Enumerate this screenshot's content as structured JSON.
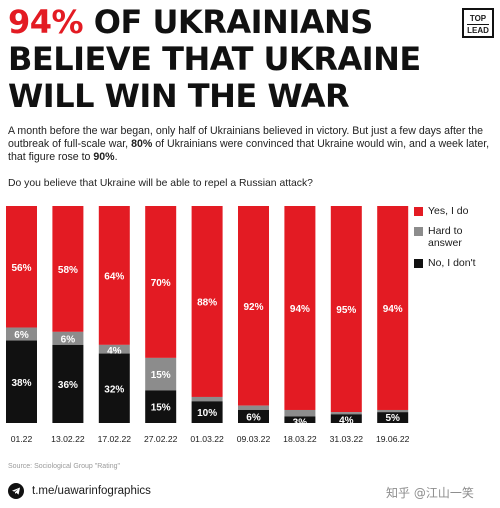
{
  "headline": {
    "line1_red": "94%",
    "line1_rest": " OF UKRAINIANS",
    "line2": "BELIEVE THAT UKRAINE",
    "line3": "WILL WIN THE WAR"
  },
  "badge": {
    "line1": "TOP",
    "line2": "LEAD"
  },
  "intro": {
    "part1": "A month before the war began, only half of Ukrainians believed in victory. But just a few days after the outbreak of full-scale war, ",
    "bold1": "80%",
    "part2": " of Ukrainians were convinced that Ukraine would win, and a week later, that figure rose to ",
    "bold2": "90%",
    "part3": "."
  },
  "question": "Do you believe that Ukraine will be able to repel a Russian attack?",
  "colors": {
    "yes": "#e31b23",
    "hard": "#8c8c8c",
    "no": "#111111"
  },
  "chart_data": {
    "type": "bar",
    "stacked": true,
    "categories": [
      "01.22",
      "13.02.22",
      "17.02.22",
      "27.02.22",
      "01.03.22",
      "09.03.22",
      "18.03.22",
      "31.03.22",
      "19.06.22"
    ],
    "series": [
      {
        "name": "Yes, I do",
        "values": [
          56,
          58,
          64,
          70,
          88,
          92,
          94,
          95,
          94
        ],
        "labels": [
          "56%",
          "58%",
          "64%",
          "70%",
          "88%",
          "92%",
          "94%",
          "95%",
          "94%"
        ]
      },
      {
        "name": "Hard to answer",
        "values": [
          6,
          6,
          4,
          15,
          2,
          2,
          3,
          1,
          1
        ],
        "labels": [
          "6%",
          "6%",
          "4%",
          "15%",
          "",
          "",
          "",
          "",
          ""
        ]
      },
      {
        "name": "No, I don't",
        "values": [
          38,
          36,
          32,
          15,
          10,
          6,
          3,
          4,
          5
        ],
        "labels": [
          "38%",
          "36%",
          "32%",
          "15%",
          "10%",
          "6%",
          "3%",
          "4%",
          "5%"
        ]
      }
    ],
    "ylim": [
      0,
      100
    ],
    "legend_position": "right"
  },
  "source": "Source: Sociological Group \"Rating\"",
  "telegram": {
    "handle": "t.me/uawarinfographics",
    "icon": "telegram-icon"
  },
  "watermark": "知乎 @江山一笑"
}
